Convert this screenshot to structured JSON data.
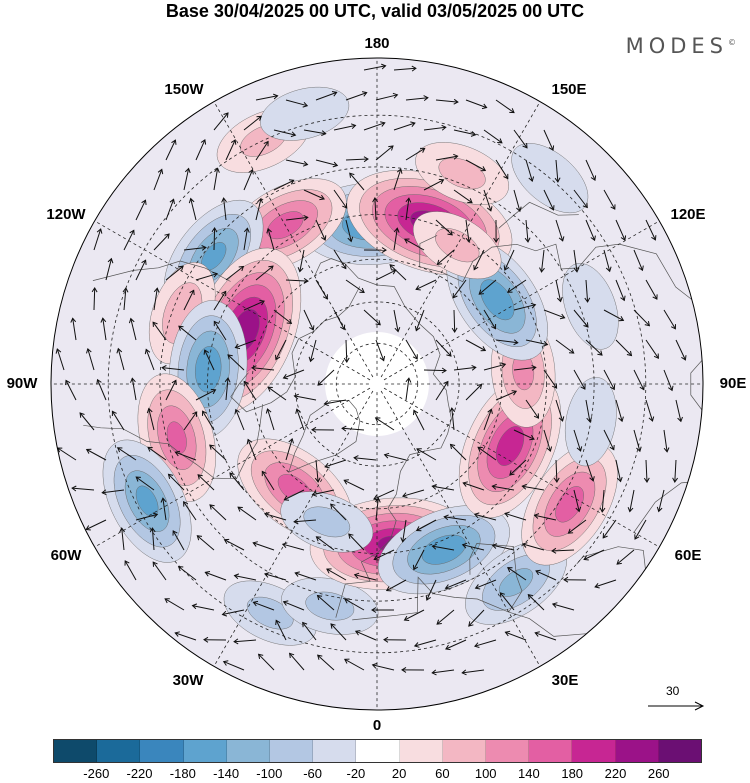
{
  "title": "Base 30/04/2025 00 UTC, valid 03/05/2025 00 UTC",
  "brand": {
    "name": "MODES",
    "mark": "©"
  },
  "longitude_labels": {
    "top": "180",
    "bottom": "0",
    "left": "90W",
    "right": "90E",
    "upper_left_1": "150W",
    "upper_left_2": "120W",
    "upper_right_1": "150E",
    "upper_right_2": "120E",
    "lower_left_1": "60W",
    "lower_left_2": "30W",
    "lower_right_1": "60E",
    "lower_right_2": "30E"
  },
  "wind_reference": {
    "label": "30",
    "icon": "arrow-right-icon"
  },
  "colorbar": {
    "colors": [
      "#0e4a6b",
      "#1b6a9a",
      "#3a86bd",
      "#5ea3cf",
      "#8ab6d6",
      "#b3c7e3",
      "#d6dced",
      "#ffffff",
      "#f8dde0",
      "#f3b7c3",
      "#ed8bb0",
      "#e35fa3",
      "#c72693",
      "#9b1288",
      "#6b0f73"
    ],
    "ticks": [
      "-260",
      "-220",
      "-180",
      "-140",
      "-100",
      "-60",
      "-20",
      "20",
      "60",
      "100",
      "140",
      "180",
      "220",
      "260"
    ]
  },
  "map": {
    "projection": "north-polar-stereographic",
    "field": "geopotential-height-anomaly",
    "anomalies": [
      {
        "lon": -178,
        "lat": 52,
        "value": -180
      },
      {
        "lon": 162,
        "lat": 50,
        "value": 240
      },
      {
        "lon": 158,
        "lat": 38,
        "value": 60
      },
      {
        "lon": -150,
        "lat": 47,
        "value": 150
      },
      {
        "lon": -155,
        "lat": 30,
        "value": 60
      },
      {
        "lon": -128,
        "lat": 42,
        "value": -140
      },
      {
        "lon": -112,
        "lat": 56,
        "value": 250
      },
      {
        "lon": -110,
        "lat": 42,
        "value": 80
      },
      {
        "lon": -95,
        "lat": 50,
        "value": -160
      },
      {
        "lon": -75,
        "lat": 42,
        "value": 140
      },
      {
        "lon": -63,
        "lat": 32,
        "value": -140
      },
      {
        "lon": -38,
        "lat": 58,
        "value": 150
      },
      {
        "lon": -25,
        "lat": 33,
        "value": -60
      },
      {
        "lon": -12,
        "lat": 38,
        "value": -60
      },
      {
        "lon": 5,
        "lat": 52,
        "value": 220
      },
      {
        "lon": 22,
        "lat": 48,
        "value": -160
      },
      {
        "lon": 35,
        "lat": 35,
        "value": -100
      },
      {
        "lon": 58,
        "lat": 38,
        "value": 150
      },
      {
        "lon": 65,
        "lat": 55,
        "value": 200
      },
      {
        "lon": 80,
        "lat": 40,
        "value": -40
      },
      {
        "lon": 95,
        "lat": 55,
        "value": 100
      },
      {
        "lon": 125,
        "lat": 55,
        "value": -160
      },
      {
        "lon": 110,
        "lat": 38,
        "value": -40
      },
      {
        "lon": 140,
        "lat": 30,
        "value": -40
      },
      {
        "lon": 150,
        "lat": 52,
        "value": 60
      },
      {
        "lon": -165,
        "lat": 28,
        "value": -40
      },
      {
        "lon": -20,
        "lat": 55,
        "value": -60
      }
    ]
  }
}
